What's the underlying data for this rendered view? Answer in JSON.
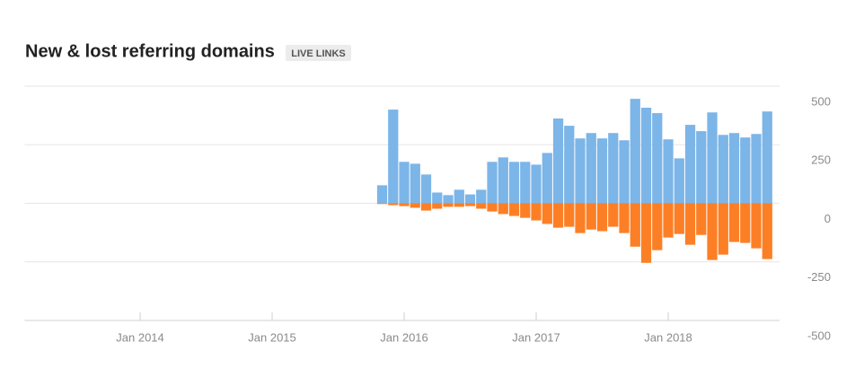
{
  "chart_data": {
    "type": "bar",
    "title": "New & lost referring domains",
    "badge": "LIVE LINKS",
    "categories": [
      null,
      null,
      null,
      null,
      null,
      null,
      null,
      null,
      null,
      null,
      "Jan 2014",
      null,
      null,
      null,
      null,
      null,
      null,
      null,
      null,
      null,
      null,
      null,
      "Jan 2015",
      null,
      null,
      null,
      null,
      null,
      null,
      null,
      null,
      null,
      null,
      null,
      "Jan 2016",
      null,
      null,
      null,
      null,
      null,
      null,
      null,
      null,
      null,
      null,
      null,
      "Jan 2017",
      null,
      null,
      null,
      null,
      null,
      null,
      null,
      null,
      null,
      null,
      null,
      "Jan 2018",
      null,
      null,
      null,
      null,
      null,
      null,
      null,
      null,
      null
    ],
    "series": [
      {
        "color": "#7cb5e8",
        "values": [
          null,
          null,
          null,
          null,
          null,
          null,
          null,
          null,
          null,
          null,
          null,
          null,
          null,
          null,
          null,
          null,
          null,
          null,
          null,
          null,
          null,
          null,
          null,
          null,
          null,
          null,
          null,
          null,
          null,
          null,
          null,
          null,
          77,
          400,
          177,
          169,
          123,
          46,
          35,
          58,
          38,
          58,
          177,
          196,
          177,
          177,
          165,
          215,
          362,
          331,
          277,
          300,
          277,
          300,
          269,
          446,
          408,
          385,
          273,
          192,
          335,
          308,
          388,
          292,
          300,
          281,
          296,
          392
        ]
      },
      {
        "color": "#fc7f26",
        "values": [
          null,
          null,
          null,
          null,
          null,
          null,
          null,
          null,
          null,
          null,
          null,
          null,
          null,
          null,
          null,
          null,
          null,
          null,
          null,
          null,
          null,
          null,
          null,
          null,
          null,
          null,
          null,
          null,
          null,
          null,
          null,
          null,
          -3,
          -8,
          -12,
          -19,
          -31,
          -23,
          -15,
          -15,
          -12,
          -23,
          -35,
          -46,
          -54,
          -62,
          -73,
          -88,
          -104,
          -100,
          -127,
          -112,
          -119,
          -100,
          -127,
          -185,
          -254,
          -200,
          -146,
          -131,
          -177,
          -135,
          -242,
          -219,
          -165,
          -169,
          -192,
          -238
        ]
      }
    ],
    "ylim": [
      -500,
      500
    ],
    "yticks": [
      500,
      250,
      0,
      -250,
      -500
    ],
    "grid": true
  }
}
